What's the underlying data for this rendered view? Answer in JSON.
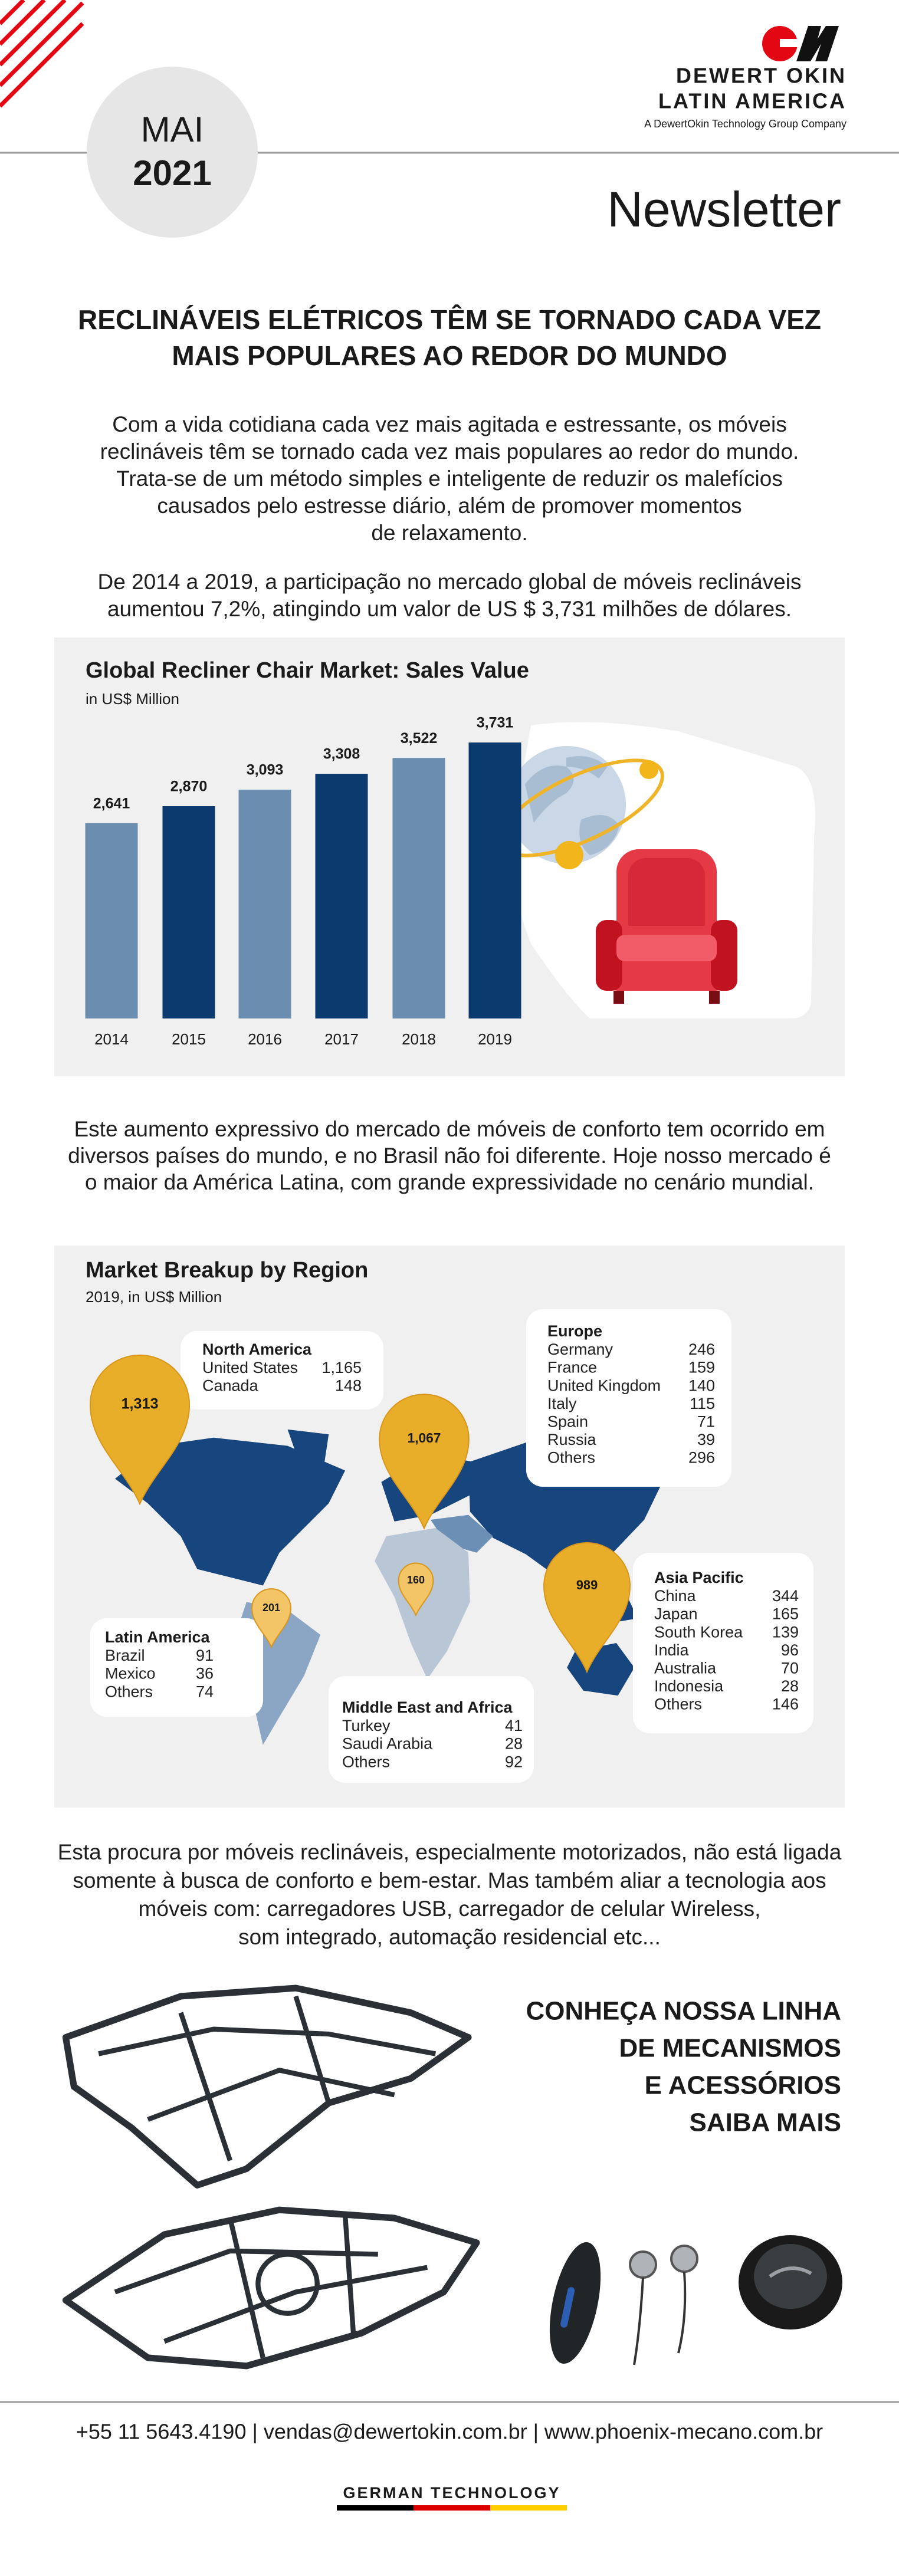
{
  "header": {
    "month": "MAI",
    "year": "2021",
    "company_line1": "DEWERT OKIN",
    "company_line2": "LATIN AMERICA",
    "tagline": "A DewertOkin Technology Group Company",
    "newsletter": "Newsletter"
  },
  "article": {
    "title_lines": [
      "RECLINÁVEIS ELÉTRICOS TÊM SE TORNADO CADA VEZ",
      "MAIS POPULARES AO REDOR DO MUNDO"
    ],
    "paragraph1_lines": [
      "Com a vida cotidiana cada vez mais agitada e estressante, os móveis",
      "reclináveis têm se tornado cada vez mais populares ao redor do mundo.",
      "Trata-se de um método simples e inteligente de reduzir os malefícios",
      "causados pelo estresse diário, além de promover momentos",
      "de relaxamento."
    ],
    "paragraph2_lines": [
      "De 2014 a 2019, a participação no mercado global de móveis reclináveis",
      "aumentou 7,2%, atingindo um valor de US $ 3,731 milhões de dólares."
    ],
    "paragraph3_lines": [
      "Este aumento expressivo do mercado de móveis de conforto tem ocorrido em",
      "diversos países do mundo, e no Brasil não foi diferente. Hoje nosso mercado é",
      "o maior da América Latina, com grande expressividade no cenário mundial."
    ],
    "paragraph4_lines": [
      "Esta procura por móveis reclináveis, especialmente motorizados, não está ligada",
      "somente à busca de conforto e bem-estar. Mas também aliar a tecnologia aos",
      "móveis com: carregadores USB, carregador de celular Wireless,",
      "som integrado, automação residencial etc..."
    ]
  },
  "chart_data": {
    "type": "bar",
    "title": "Global Recliner Chair Market: Sales Value",
    "subtitle": "in US$ Million",
    "categories": [
      "2014",
      "2015",
      "2016",
      "2017",
      "2018",
      "2019"
    ],
    "values": [
      2641,
      2870,
      3093,
      3308,
      3522,
      3731
    ],
    "value_labels": [
      "2,641",
      "2,870",
      "3,093",
      "3,308",
      "3,522",
      "3,731"
    ],
    "colors": [
      "#6b8db0",
      "#0b3a6e",
      "#6b8db0",
      "#0b3a6e",
      "#6b8db0",
      "#0b3a6e"
    ]
  },
  "map": {
    "title": "Market Breakup by Region",
    "subtitle": "2019, in US$ Million",
    "regions": [
      {
        "name": "North America",
        "total": "1,313",
        "items": [
          {
            "label": "United States",
            "value": "1,165"
          },
          {
            "label": "Canada",
            "value": "148"
          }
        ]
      },
      {
        "name": "Europe",
        "total": "1,067",
        "items": [
          {
            "label": "Germany",
            "value": "246"
          },
          {
            "label": "France",
            "value": "159"
          },
          {
            "label": "United Kingdom",
            "value": "140"
          },
          {
            "label": "Italy",
            "value": "115"
          },
          {
            "label": "Spain",
            "value": "71"
          },
          {
            "label": "Russia",
            "value": "39"
          },
          {
            "label": "Others",
            "value": "296"
          }
        ]
      },
      {
        "name": "Asia Pacific",
        "total": "989",
        "items": [
          {
            "label": "China",
            "value": "344"
          },
          {
            "label": "Japan",
            "value": "165"
          },
          {
            "label": "South Korea",
            "value": "139"
          },
          {
            "label": "India",
            "value": "96"
          },
          {
            "label": "Australia",
            "value": "70"
          },
          {
            "label": "Indonesia",
            "value": "28"
          },
          {
            "label": "Others",
            "value": "146"
          }
        ]
      },
      {
        "name": "Latin America",
        "total": "201",
        "items": [
          {
            "label": "Brazil",
            "value": "91"
          },
          {
            "label": "Mexico",
            "value": "36"
          },
          {
            "label": "Others",
            "value": "74"
          }
        ]
      },
      {
        "name": "Middle East and Africa",
        "total": "160",
        "items": [
          {
            "label": "Turkey",
            "value": "41"
          },
          {
            "label": "Saudi Arabia",
            "value": "28"
          },
          {
            "label": "Others",
            "value": "92"
          }
        ]
      }
    ]
  },
  "cta": {
    "lines": [
      "CONHEÇA NOSSA LINHA",
      "DE MECANISMOS",
      "E ACESSÓRIOS"
    ],
    "link": "SAIBA MAIS"
  },
  "footer": {
    "contact": "+55 11 5643.4190 | vendas@dewertokin.com.br | www.phoenix-mecano.com.br",
    "tagline": "GERMAN TECHNOLOGY"
  }
}
